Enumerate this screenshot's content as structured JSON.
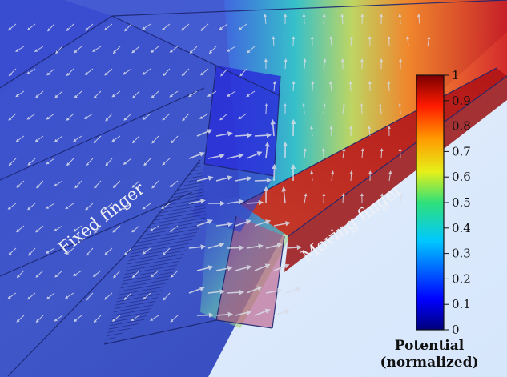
{
  "labels": {
    "fixed_finger": "Fixed finger",
    "moving_finger": "Moving finger"
  },
  "colorbar": {
    "title_line1": "Potential",
    "title_line2": "(normalized)",
    "ticks": [
      "0",
      "0.1",
      "0.2",
      "0.3",
      "0.4",
      "0.5",
      "0.6",
      "0.7",
      "0.8",
      "0.9",
      "1"
    ],
    "colors": {
      "low": "#00007a",
      "mid": "#00c8ff",
      "high": "#7a0000"
    }
  }
}
